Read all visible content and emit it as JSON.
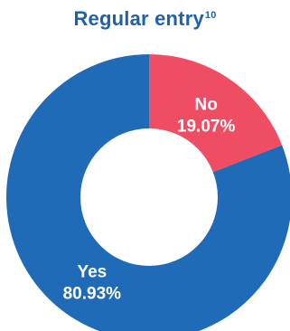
{
  "chart_data": {
    "type": "pie",
    "title": "Regular entry",
    "title_superscript": "10",
    "donut": true,
    "categories": [
      "No",
      "Yes"
    ],
    "values": [
      19.07,
      80.93
    ],
    "value_labels": [
      "19.07%",
      "80.93%"
    ],
    "colors": [
      "#EE4D63",
      "#1F6BB8"
    ],
    "legend": "none",
    "grid": false
  }
}
